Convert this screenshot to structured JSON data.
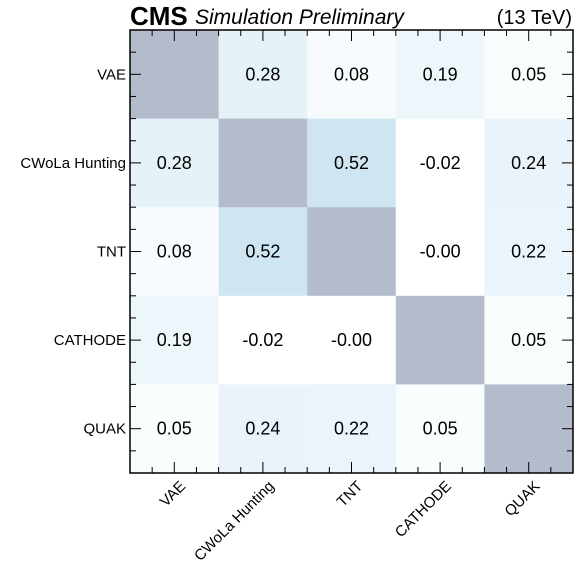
{
  "header": {
    "experiment": "CMS",
    "subtitle": "Simulation Preliminary",
    "energy": "(13 TeV)"
  },
  "chart_data": {
    "type": "heatmap",
    "title": "",
    "x_categories": [
      "VAE",
      "CWoLa Hunting",
      "TNT",
      "CATHODE",
      "QUAK"
    ],
    "y_categories": [
      "VAE",
      "CWoLa Hunting",
      "TNT",
      "CATHODE",
      "QUAK"
    ],
    "values": [
      [
        null,
        0.28,
        0.08,
        0.19,
        0.05
      ],
      [
        0.28,
        null,
        0.52,
        -0.02,
        0.24
      ],
      [
        0.08,
        0.52,
        null,
        -0.0,
        0.22
      ],
      [
        0.19,
        -0.02,
        -0.0,
        null,
        0.05
      ],
      [
        0.05,
        0.24,
        0.22,
        0.05,
        null
      ]
    ],
    "labels": [
      [
        "",
        "0.28",
        "0.08",
        "0.19",
        "0.05"
      ],
      [
        "0.28",
        "",
        "0.52",
        "-0.02",
        "0.24"
      ],
      [
        "0.08",
        "0.52",
        "",
        "-0.00",
        "0.22"
      ],
      [
        "0.19",
        "-0.02",
        "-0.00",
        "",
        "0.05"
      ],
      [
        "0.05",
        "0.24",
        "0.22",
        "0.05",
        ""
      ]
    ],
    "diagonal_color": "#b4bccc",
    "low_color": "#ffffff",
    "high_color": "#cfe6f2",
    "grid": false
  }
}
